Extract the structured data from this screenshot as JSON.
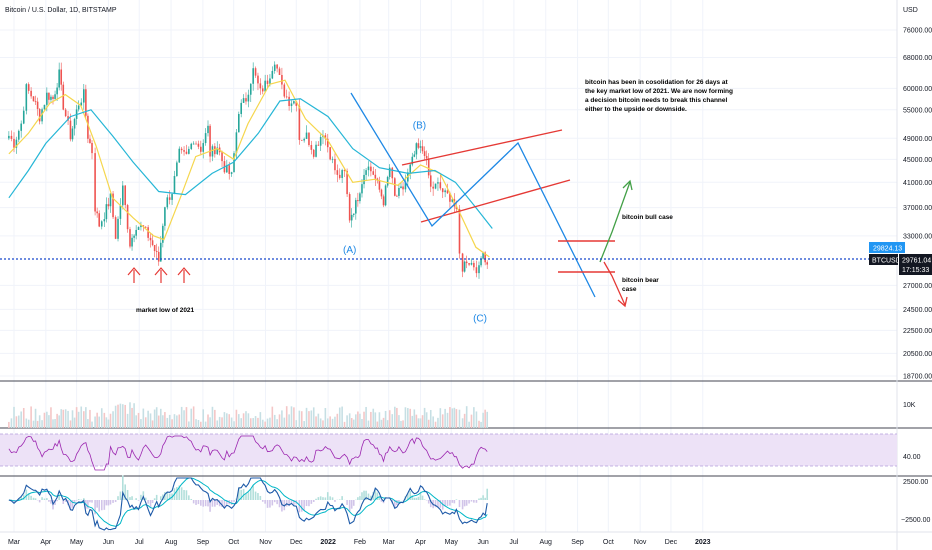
{
  "header": {
    "title": "Bitcoin / U.S. Dollar, 1D, BITSTAMP",
    "currency": "USD"
  },
  "chart_data": {
    "type": "candlestick",
    "symbol": "BTCUSD",
    "price_axis": {
      "labels": [
        "76000.00",
        "68000.00",
        "60000.00",
        "55000.00",
        "49000.00",
        "45000.00",
        "41000.00",
        "37000.00",
        "33000.00",
        "27000.00",
        "24500.00",
        "22500.00",
        "20500.00",
        "18700.00"
      ],
      "scale": "log"
    },
    "time_axis": {
      "labels": [
        "Mar",
        "Apr",
        "May",
        "Jun",
        "Jul",
        "Aug",
        "Sep",
        "Oct",
        "Nov",
        "Dec",
        "2022",
        "Feb",
        "Mar",
        "Apr",
        "May",
        "Jun",
        "Jul",
        "Aug",
        "Sep",
        "Oct",
        "Nov",
        "Dec",
        "2023"
      ]
    },
    "price_tags": {
      "last": "29824.13",
      "symbol": "BTCUSD",
      "price": "29761.04",
      "countdown": "17:15:33"
    },
    "close_series": [
      {
        "d": "2021-02-24",
        "p": 49500
      },
      {
        "d": "2021-03-01",
        "p": 48000
      },
      {
        "d": "2021-03-08",
        "p": 52000
      },
      {
        "d": "2021-03-13",
        "p": 60000
      },
      {
        "d": "2021-03-20",
        "p": 57500
      },
      {
        "d": "2021-03-26",
        "p": 53500
      },
      {
        "d": "2021-04-02",
        "p": 58500
      },
      {
        "d": "2021-04-08",
        "p": 57500
      },
      {
        "d": "2021-04-14",
        "p": 63500
      },
      {
        "d": "2021-04-18",
        "p": 56000
      },
      {
        "d": "2021-04-25",
        "p": 49500
      },
      {
        "d": "2021-05-03",
        "p": 56500
      },
      {
        "d": "2021-05-08",
        "p": 58500
      },
      {
        "d": "2021-05-12",
        "p": 49500
      },
      {
        "d": "2021-05-16",
        "p": 46500
      },
      {
        "d": "2021-05-19",
        "p": 37000
      },
      {
        "d": "2021-05-23",
        "p": 34500
      },
      {
        "d": "2021-05-28",
        "p": 36000
      },
      {
        "d": "2021-06-03",
        "p": 38500
      },
      {
        "d": "2021-06-08",
        "p": 33000
      },
      {
        "d": "2021-06-15",
        "p": 40000
      },
      {
        "d": "2021-06-22",
        "p": 32000
      },
      {
        "d": "2021-06-28",
        "p": 34500
      },
      {
        "d": "2021-07-05",
        "p": 34000
      },
      {
        "d": "2021-07-12",
        "p": 32500
      },
      {
        "d": "2021-07-20",
        "p": 29800
      },
      {
        "d": "2021-07-26",
        "p": 37500
      },
      {
        "d": "2021-08-02",
        "p": 39500
      },
      {
        "d": "2021-08-09",
        "p": 46000
      },
      {
        "d": "2021-08-16",
        "p": 45500
      },
      {
        "d": "2021-08-23",
        "p": 49000
      },
      {
        "d": "2021-08-30",
        "p": 47000
      },
      {
        "d": "2021-09-06",
        "p": 51000
      },
      {
        "d": "2021-09-08",
        "p": 46000
      },
      {
        "d": "2021-09-15",
        "p": 47500
      },
      {
        "d": "2021-09-22",
        "p": 43500
      },
      {
        "d": "2021-09-29",
        "p": 42000
      },
      {
        "d": "2021-10-06",
        "p": 55000
      },
      {
        "d": "2021-10-13",
        "p": 57500
      },
      {
        "d": "2021-10-20",
        "p": 64500
      },
      {
        "d": "2021-10-27",
        "p": 59000
      },
      {
        "d": "2021-11-03",
        "p": 62000
      },
      {
        "d": "2021-11-10",
        "p": 67500
      },
      {
        "d": "2021-11-17",
        "p": 60000
      },
      {
        "d": "2021-11-24",
        "p": 57000
      },
      {
        "d": "2021-12-01",
        "p": 57000
      },
      {
        "d": "2021-12-04",
        "p": 49000
      },
      {
        "d": "2021-12-11",
        "p": 49500
      },
      {
        "d": "2021-12-18",
        "p": 46500
      },
      {
        "d": "2021-12-27",
        "p": 50500
      },
      {
        "d": "2022-01-03",
        "p": 46000
      },
      {
        "d": "2022-01-10",
        "p": 41800
      },
      {
        "d": "2022-01-17",
        "p": 42500
      },
      {
        "d": "2022-01-22",
        "p": 35500
      },
      {
        "d": "2022-01-28",
        "p": 37500
      },
      {
        "d": "2022-02-07",
        "p": 44000
      },
      {
        "d": "2022-02-14",
        "p": 42500
      },
      {
        "d": "2022-02-24",
        "p": 38000
      },
      {
        "d": "2022-03-02",
        "p": 43500
      },
      {
        "d": "2022-03-07",
        "p": 38500
      },
      {
        "d": "2022-03-15",
        "p": 40000
      },
      {
        "d": "2022-03-22",
        "p": 43500
      },
      {
        "d": "2022-03-28",
        "p": 47000
      },
      {
        "d": "2022-04-05",
        "p": 46500
      },
      {
        "d": "2022-04-11",
        "p": 40000
      },
      {
        "d": "2022-04-18",
        "p": 40500
      },
      {
        "d": "2022-04-25",
        "p": 39000
      },
      {
        "d": "2022-05-02",
        "p": 38500
      },
      {
        "d": "2022-05-06",
        "p": 36000
      },
      {
        "d": "2022-05-09",
        "p": 30500
      },
      {
        "d": "2022-05-12",
        "p": 29000
      },
      {
        "d": "2022-05-16",
        "p": 30000
      },
      {
        "d": "2022-05-23",
        "p": 29300
      },
      {
        "d": "2022-05-28",
        "p": 28700
      },
      {
        "d": "2022-06-01",
        "p": 31500
      },
      {
        "d": "2022-06-03",
        "p": 29800
      },
      {
        "d": "2022-06-07",
        "p": 29800
      }
    ],
    "moving_averages": [
      {
        "color": "#f5d64d",
        "points": [
          {
            "d": "2021-02-24",
            "p": 46000
          },
          {
            "d": "2021-03-15",
            "p": 50000
          },
          {
            "d": "2021-04-05",
            "p": 56500
          },
          {
            "d": "2021-04-20",
            "p": 58500
          },
          {
            "d": "2021-05-05",
            "p": 56000
          },
          {
            "d": "2021-05-20",
            "p": 47500
          },
          {
            "d": "2021-06-05",
            "p": 38500
          },
          {
            "d": "2021-06-25",
            "p": 35500
          },
          {
            "d": "2021-07-15",
            "p": 33000
          },
          {
            "d": "2021-07-25",
            "p": 32500
          },
          {
            "d": "2021-08-10",
            "p": 38500
          },
          {
            "d": "2021-08-25",
            "p": 45500
          },
          {
            "d": "2021-09-15",
            "p": 47000
          },
          {
            "d": "2021-10-01",
            "p": 45000
          },
          {
            "d": "2021-10-15",
            "p": 52000
          },
          {
            "d": "2021-11-05",
            "p": 61000
          },
          {
            "d": "2021-11-20",
            "p": 62000
          },
          {
            "d": "2021-12-10",
            "p": 53000
          },
          {
            "d": "2022-01-01",
            "p": 48500
          },
          {
            "d": "2022-01-25",
            "p": 41000
          },
          {
            "d": "2022-02-15",
            "p": 41500
          },
          {
            "d": "2022-03-10",
            "p": 40500
          },
          {
            "d": "2022-04-01",
            "p": 44000
          },
          {
            "d": "2022-04-20",
            "p": 42500
          },
          {
            "d": "2022-05-10",
            "p": 36000
          },
          {
            "d": "2022-05-25",
            "p": 31500
          },
          {
            "d": "2022-06-07",
            "p": 30300
          }
        ]
      },
      {
        "color": "#26b6d6",
        "points": [
          {
            "d": "2021-02-24",
            "p": 38500
          },
          {
            "d": "2021-03-15",
            "p": 43000
          },
          {
            "d": "2021-04-01",
            "p": 48000
          },
          {
            "d": "2021-04-25",
            "p": 53500
          },
          {
            "d": "2021-05-15",
            "p": 55000
          },
          {
            "d": "2021-06-05",
            "p": 49500
          },
          {
            "d": "2021-06-25",
            "p": 44500
          },
          {
            "d": "2021-07-20",
            "p": 39500
          },
          {
            "d": "2021-08-15",
            "p": 39000
          },
          {
            "d": "2021-09-10",
            "p": 42500
          },
          {
            "d": "2021-10-01",
            "p": 44500
          },
          {
            "d": "2021-10-25",
            "p": 50000
          },
          {
            "d": "2021-11-15",
            "p": 57000
          },
          {
            "d": "2021-12-05",
            "p": 57500
          },
          {
            "d": "2022-01-01",
            "p": 53500
          },
          {
            "d": "2022-01-25",
            "p": 47000
          },
          {
            "d": "2022-02-20",
            "p": 43500
          },
          {
            "d": "2022-03-20",
            "p": 42500
          },
          {
            "d": "2022-04-15",
            "p": 43000
          },
          {
            "d": "2022-05-05",
            "p": 41000
          },
          {
            "d": "2022-05-25",
            "p": 37000
          },
          {
            "d": "2022-06-10",
            "p": 34000
          }
        ]
      }
    ],
    "wave_labels": [
      {
        "text": "(A)",
        "d": "2022-01-22",
        "p": 30800
      },
      {
        "text": "(B)",
        "d": "2022-03-31",
        "p": 51000
      },
      {
        "text": "(C)",
        "d": "2022-05-29",
        "p": 23300
      }
    ],
    "annotations": {
      "consolidation_note": [
        "bitcoin has been in cosolidation for 26 days at",
        "the key market low of 2021. We are now forming",
        "a decision bitcoin needs to break this channel",
        "either to the upside or downside."
      ],
      "market_low": "market low of 2021",
      "bull_case": "bitcoin bull case",
      "bear_case": [
        "bitcoin bear",
        "case"
      ]
    },
    "volume_axis": {
      "label": "10K"
    },
    "rsi_axis": {
      "label": "40.00"
    },
    "macd_axis": {
      "labels": [
        "2500.00",
        "−2500.00"
      ]
    },
    "colors": {
      "up": "#26a69a",
      "down": "#ef5350",
      "drawing_red": "#e53935",
      "drawing_blue": "#1e88e5",
      "drawing_green": "#43a047",
      "rsi": "#9c27b0",
      "rsi_band": "#ede2f7",
      "macd": "#1e5aa8",
      "signal": "#00b7c7"
    }
  }
}
